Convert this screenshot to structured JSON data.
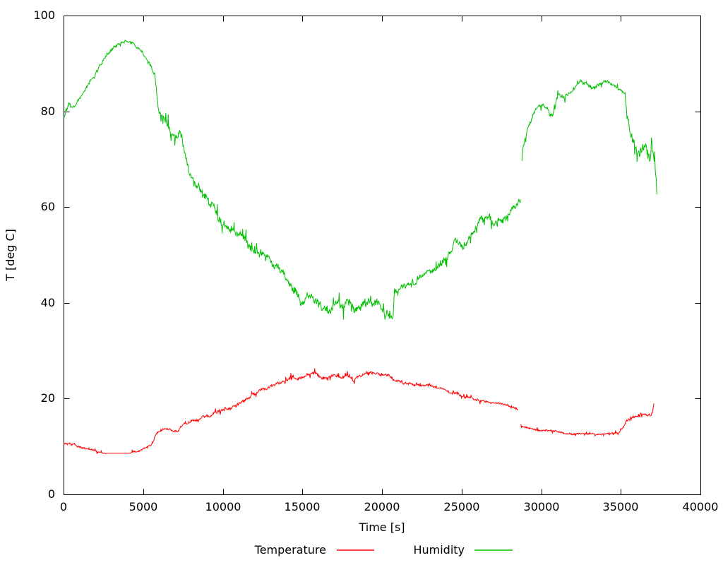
{
  "chart_data": {
    "type": "line",
    "title": "",
    "xlabel": "Time [s]",
    "ylabel": "T [deg C]",
    "xlim": [
      0,
      40000
    ],
    "ylim": [
      0,
      100
    ],
    "x_ticks": [
      0,
      5000,
      10000,
      15000,
      20000,
      25000,
      30000,
      35000,
      40000
    ],
    "y_ticks": [
      0,
      20,
      40,
      60,
      80,
      100
    ],
    "grid": false,
    "legend_position": "bottom-center",
    "background": "#ffffff",
    "axis_color": "#000000",
    "point_format": [
      "time_s",
      "value",
      "noise_amplitude"
    ],
    "series": [
      {
        "name": "Temperature",
        "color": "#ff0000",
        "segments": [
          [
            [
              0,
              10.6,
              0.25
            ],
            [
              300,
              10.4,
              0.25
            ],
            [
              700,
              10.4,
              0.3
            ],
            [
              1000,
              10.0,
              0.25
            ],
            [
              1400,
              9.7,
              0.25
            ],
            [
              1800,
              9.4,
              0.3
            ],
            [
              2200,
              9.0,
              0.3
            ],
            [
              2600,
              8.7,
              0.2
            ],
            [
              2800,
              8.6,
              0.0
            ],
            [
              4200,
              8.6,
              0.0
            ],
            [
              4350,
              9.1,
              0.3
            ],
            [
              4600,
              8.9,
              0.3
            ],
            [
              4900,
              9.3,
              0.25
            ],
            [
              5200,
              9.6,
              0.3
            ],
            [
              5500,
              10.1,
              0.3
            ],
            [
              5650,
              10.9,
              0.3
            ],
            [
              5800,
              12.3,
              0.4
            ],
            [
              6000,
              13.0,
              0.35
            ],
            [
              6300,
              13.4,
              0.35
            ],
            [
              6700,
              13.3,
              0.35
            ],
            [
              7000,
              13.0,
              0.3
            ],
            [
              7150,
              12.9,
              0.3
            ],
            [
              7350,
              13.9,
              0.35
            ],
            [
              7600,
              14.6,
              0.4
            ],
            [
              8000,
              15.0,
              0.35
            ],
            [
              8400,
              15.5,
              0.35
            ],
            [
              8800,
              16.1,
              0.35
            ],
            [
              9300,
              16.6,
              0.35
            ],
            [
              9800,
              17.2,
              0.4
            ],
            [
              10300,
              17.8,
              0.4
            ],
            [
              10800,
              18.4,
              0.4
            ],
            [
              11300,
              19.5,
              0.4
            ],
            [
              11800,
              20.6,
              0.4
            ],
            [
              12300,
              21.6,
              0.4
            ],
            [
              12800,
              22.4,
              0.4
            ],
            [
              13300,
              23.1,
              0.4
            ],
            [
              13800,
              23.8,
              0.4
            ],
            [
              14300,
              24.4,
              0.45
            ],
            [
              14800,
              24.3,
              0.45
            ],
            [
              15300,
              24.7,
              0.45
            ],
            [
              15800,
              25.0,
              0.5
            ],
            [
              16300,
              24.5,
              0.45
            ],
            [
              16800,
              24.9,
              0.5
            ],
            [
              17300,
              24.7,
              0.45
            ],
            [
              17800,
              25.0,
              0.45
            ],
            [
              18100,
              24.4,
              0.4
            ],
            [
              18220,
              23.8,
              0.35
            ],
            [
              18400,
              24.7,
              0.4
            ],
            [
              18800,
              25.1,
              0.45
            ],
            [
              19300,
              25.1,
              0.45
            ],
            [
              19800,
              24.9,
              0.45
            ],
            [
              20300,
              24.8,
              0.4
            ],
            [
              20600,
              24.5,
              0.4
            ],
            [
              20800,
              23.7,
              0.35
            ],
            [
              21300,
              23.4,
              0.35
            ],
            [
              21800,
              23.2,
              0.35
            ],
            [
              22300,
              23.0,
              0.35
            ],
            [
              22800,
              22.7,
              0.35
            ],
            [
              23300,
              22.3,
              0.35
            ],
            [
              23800,
              21.9,
              0.35
            ],
            [
              24300,
              21.4,
              0.35
            ],
            [
              24800,
              21.0,
              0.35
            ],
            [
              25300,
              20.4,
              0.35
            ],
            [
              25800,
              19.8,
              0.35
            ],
            [
              26300,
              19.3,
              0.35
            ],
            [
              26800,
              19.0,
              0.3
            ],
            [
              27300,
              18.8,
              0.3
            ],
            [
              27800,
              18.7,
              0.3
            ],
            [
              28200,
              18.5,
              0.3
            ],
            [
              28550,
              17.8,
              0.25
            ]
          ],
          [
            [
              28700,
              14.5,
              0.3
            ],
            [
              28900,
              14.0,
              0.3
            ],
            [
              29200,
              13.7,
              0.25
            ],
            [
              29600,
              13.5,
              0.25
            ],
            [
              30000,
              13.3,
              0.25
            ],
            [
              30400,
              13.5,
              0.25
            ],
            [
              30700,
              13.4,
              0.25
            ],
            [
              31100,
              13.2,
              0.25
            ],
            [
              31500,
              12.9,
              0.25
            ],
            [
              32000,
              12.7,
              0.25
            ],
            [
              32500,
              12.6,
              0.2
            ],
            [
              33000,
              12.6,
              0.2
            ],
            [
              33500,
              12.5,
              0.2
            ],
            [
              34000,
              12.5,
              0.2
            ],
            [
              34500,
              12.6,
              0.25
            ],
            [
              34900,
              12.8,
              0.3
            ],
            [
              35100,
              14.0,
              0.5
            ],
            [
              35250,
              15.0,
              0.5
            ],
            [
              35450,
              15.7,
              0.5
            ],
            [
              35700,
              16.2,
              0.5
            ],
            [
              36000,
              16.0,
              0.45
            ],
            [
              36300,
              16.4,
              0.5
            ],
            [
              36600,
              16.2,
              0.45
            ],
            [
              36850,
              16.4,
              0.45
            ],
            [
              37000,
              17.3,
              0.5
            ],
            [
              37080,
              19.2,
              0.4
            ]
          ]
        ]
      },
      {
        "name": "Humidity",
        "color": "#00c000",
        "segments": [
          [
            [
              0,
              78.5,
              1.0
            ],
            [
              150,
              80.3,
              0.6
            ],
            [
              350,
              81.8,
              0.5
            ],
            [
              550,
              80.9,
              0.5
            ],
            [
              800,
              82.0,
              0.5
            ],
            [
              1100,
              83.5,
              0.5
            ],
            [
              1500,
              85.5,
              0.5
            ],
            [
              1900,
              87.5,
              0.6
            ],
            [
              2300,
              89.5,
              0.6
            ],
            [
              2700,
              91.3,
              0.5
            ],
            [
              3100,
              92.8,
              0.5
            ],
            [
              3500,
              93.9,
              0.4
            ],
            [
              3900,
              94.5,
              0.4
            ],
            [
              4300,
              94.3,
              0.4
            ],
            [
              4700,
              93.3,
              0.5
            ],
            [
              5100,
              91.8,
              0.6
            ],
            [
              5500,
              89.8,
              0.6
            ],
            [
              5750,
              87.8,
              0.6
            ],
            [
              5850,
              84.0,
              0.8
            ],
            [
              6000,
              79.8,
              1.0
            ],
            [
              6200,
              78.2,
              0.9
            ],
            [
              6500,
              76.3,
              1.2
            ],
            [
              6800,
              74.3,
              1.3
            ],
            [
              7100,
              74.0,
              1.3
            ],
            [
              7300,
              76.3,
              1.0
            ],
            [
              7450,
              74.0,
              1.0
            ],
            [
              7600,
              70.5,
              1.2
            ],
            [
              7900,
              66.5,
              1.3
            ],
            [
              8200,
              64.3,
              1.2
            ],
            [
              8700,
              63.0,
              1.3
            ],
            [
              9300,
              60.2,
              1.3
            ],
            [
              10000,
              57.6,
              1.3
            ],
            [
              10700,
              55.6,
              1.3
            ],
            [
              11500,
              53.2,
              1.3
            ],
            [
              12200,
              51.0,
              1.3
            ],
            [
              13000,
              48.4,
              1.2
            ],
            [
              13800,
              45.6,
              1.2
            ],
            [
              14500,
              43.0,
              1.2
            ],
            [
              14900,
              39.8,
              1.2
            ],
            [
              15300,
              42.0,
              1.0
            ],
            [
              15800,
              39.8,
              1.2
            ],
            [
              16300,
              38.3,
              1.3
            ],
            [
              16800,
              38.0,
              1.3
            ],
            [
              17200,
              39.3,
              1.2
            ],
            [
              17600,
              38.3,
              1.3
            ],
            [
              18000,
              40.0,
              1.2
            ],
            [
              18400,
              38.6,
              1.3
            ],
            [
              18900,
              39.6,
              1.2
            ],
            [
              19400,
              39.2,
              1.2
            ],
            [
              19700,
              40.3,
              1.1
            ],
            [
              20100,
              38.4,
              1.2
            ],
            [
              20500,
              37.3,
              1.0
            ],
            [
              20700,
              37.2,
              0.8
            ],
            [
              20780,
              42.4,
              0.8
            ],
            [
              21100,
              42.8,
              0.7
            ],
            [
              21600,
              43.3,
              0.7
            ],
            [
              22100,
              44.2,
              0.8
            ],
            [
              22600,
              45.2,
              0.8
            ],
            [
              23100,
              46.5,
              0.8
            ],
            [
              23600,
              47.8,
              0.8
            ],
            [
              24100,
              50.0,
              0.9
            ],
            [
              24550,
              52.3,
              0.9
            ],
            [
              24800,
              53.0,
              0.8
            ],
            [
              25150,
              51.8,
              0.8
            ],
            [
              25700,
              55.0,
              0.9
            ],
            [
              26150,
              57.3,
              0.9
            ],
            [
              26500,
              57.5,
              1.0
            ],
            [
              26800,
              57.2,
              1.0
            ],
            [
              27050,
              56.4,
              0.9
            ],
            [
              27350,
              57.4,
              0.9
            ],
            [
              27600,
              56.8,
              0.9
            ],
            [
              28100,
              59.0,
              0.9
            ],
            [
              28450,
              60.0,
              0.9
            ],
            [
              28690,
              61.3,
              0.8
            ]
          ],
          [
            [
              28790,
              70.0,
              0.9
            ],
            [
              28970,
              74.5,
              0.7
            ],
            [
              29270,
              77.7,
              0.6
            ],
            [
              29580,
              80.3,
              0.5
            ],
            [
              29850,
              81.5,
              0.5
            ],
            [
              30150,
              81.7,
              0.5
            ],
            [
              30400,
              80.5,
              0.6
            ],
            [
              30550,
              79.2,
              0.6
            ],
            [
              30750,
              79.5,
              0.6
            ],
            [
              30950,
              82.0,
              0.7
            ],
            [
              31100,
              83.3,
              0.6
            ],
            [
              31300,
              82.7,
              0.6
            ],
            [
              31600,
              82.8,
              0.6
            ],
            [
              31900,
              83.6,
              0.6
            ],
            [
              32200,
              85.0,
              0.6
            ],
            [
              32500,
              86.0,
              0.5
            ],
            [
              32800,
              85.6,
              0.5
            ],
            [
              33100,
              85.2,
              0.6
            ],
            [
              33400,
              85.4,
              0.5
            ],
            [
              33700,
              86.1,
              0.5
            ],
            [
              34100,
              85.9,
              0.5
            ],
            [
              34400,
              85.3,
              0.5
            ],
            [
              34800,
              84.5,
              0.6
            ],
            [
              35100,
              83.9,
              0.6
            ],
            [
              35250,
              83.3,
              0.6
            ],
            [
              35400,
              78.0,
              1.2
            ],
            [
              35650,
              74.3,
              1.5
            ],
            [
              35900,
              72.0,
              1.5
            ],
            [
              36150,
              70.2,
              1.3
            ],
            [
              36400,
              71.5,
              1.8
            ],
            [
              36650,
              71.0,
              2.0
            ],
            [
              36900,
              72.3,
              1.8
            ],
            [
              37050,
              71.3,
              1.5
            ],
            [
              37150,
              68.5,
              1.2
            ],
            [
              37220,
              65.5,
              1.0
            ],
            [
              37270,
              62.5,
              0.6
            ]
          ]
        ]
      }
    ]
  }
}
